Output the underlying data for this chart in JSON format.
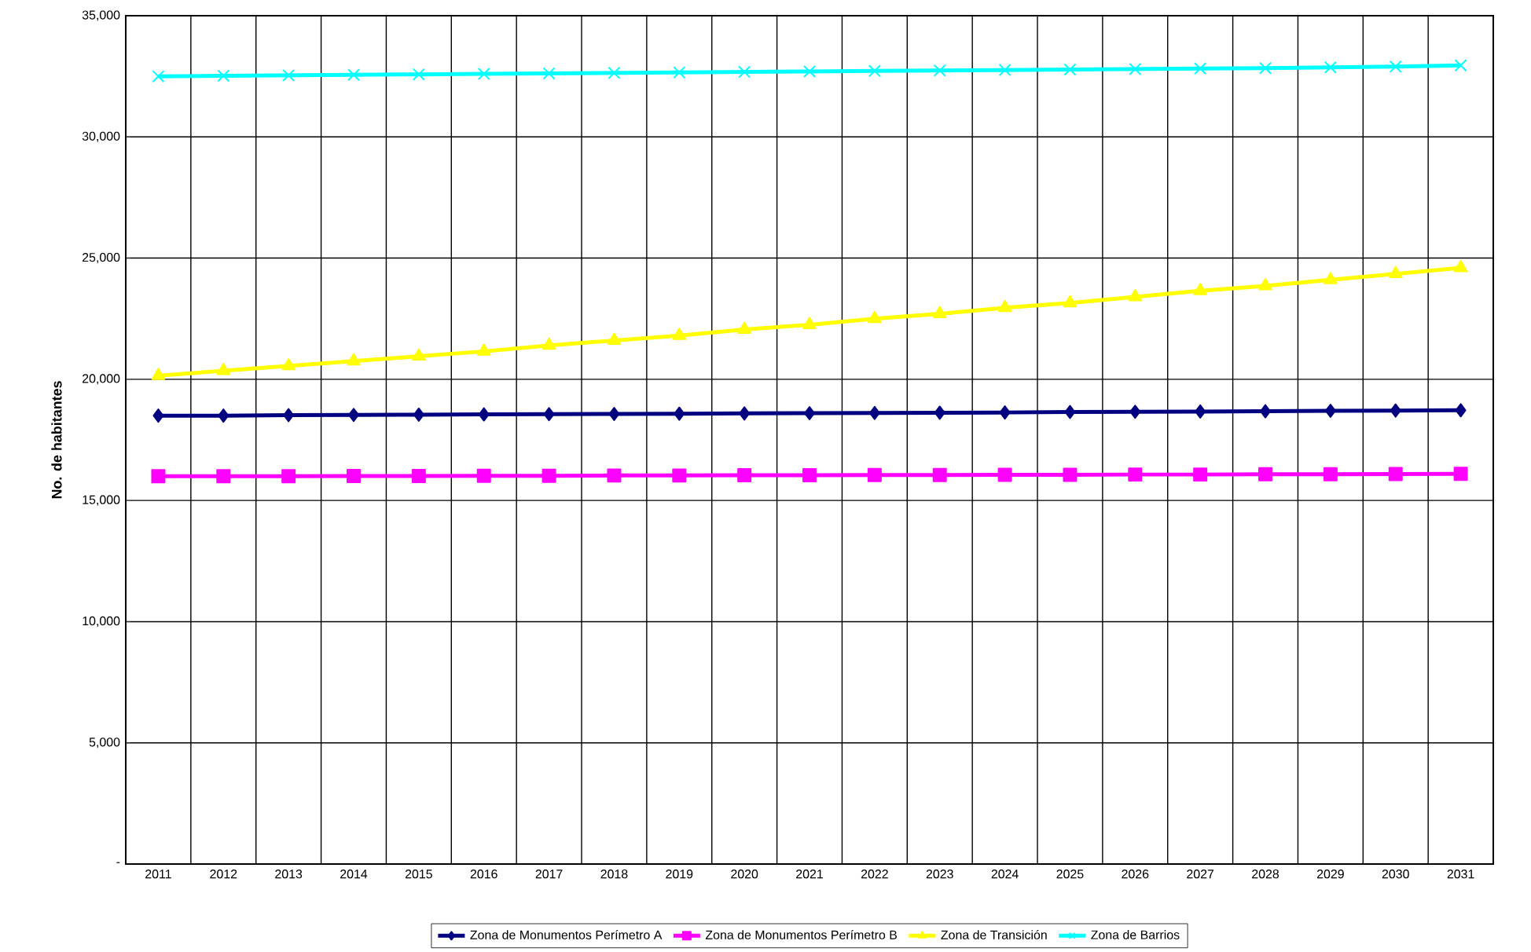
{
  "chart_data": {
    "type": "line",
    "ylabel": "No. de habitantes",
    "categories": [
      "2011",
      "2012",
      "2013",
      "2014",
      "2015",
      "2016",
      "2017",
      "2018",
      "2019",
      "2020",
      "2021",
      "2022",
      "2023",
      "2024",
      "2025",
      "2026",
      "2027",
      "2028",
      "2029",
      "2030",
      "2031"
    ],
    "series": [
      {
        "name": "Zona de Monumentos Perímetro A",
        "color": "#000080",
        "marker": "diamond",
        "values": [
          18500,
          18500,
          18520,
          18530,
          18540,
          18550,
          18560,
          18570,
          18580,
          18590,
          18600,
          18610,
          18620,
          18630,
          18650,
          18660,
          18670,
          18680,
          18700,
          18710,
          18720
        ]
      },
      {
        "name": "Zona de Monumentos Perímetro B",
        "color": "#ff00ff",
        "marker": "square",
        "values": [
          16000,
          16000,
          16000,
          16010,
          16010,
          16020,
          16020,
          16030,
          16030,
          16040,
          16040,
          16050,
          16050,
          16060,
          16060,
          16070,
          16070,
          16080,
          16080,
          16090,
          16100
        ]
      },
      {
        "name": "Zona de Transición",
        "color": "#ffff00",
        "marker": "triangle",
        "values": [
          20150,
          20350,
          20550,
          20750,
          20950,
          21150,
          21400,
          21600,
          21800,
          22050,
          22250,
          22500,
          22700,
          22950,
          23150,
          23400,
          23650,
          23850,
          24100,
          24350,
          24600
        ]
      },
      {
        "name": "Zona de Barrios",
        "color": "#00ffff",
        "marker": "cross",
        "values": [
          32500,
          32520,
          32540,
          32560,
          32580,
          32600,
          32620,
          32640,
          32660,
          32680,
          32700,
          32720,
          32740,
          32760,
          32780,
          32800,
          32820,
          32840,
          32870,
          32900,
          32950
        ]
      }
    ],
    "ylim": [
      0,
      35000
    ],
    "yticks": [
      {
        "value": 0,
        "label": "-"
      },
      {
        "value": 5000,
        "label": "5,000"
      },
      {
        "value": 10000,
        "label": "10,000"
      },
      {
        "value": 15000,
        "label": "15,000"
      },
      {
        "value": 20000,
        "label": "20,000"
      },
      {
        "value": 25000,
        "label": "25,000"
      },
      {
        "value": 30000,
        "label": "30,000"
      },
      {
        "value": 35000,
        "label": "35,000"
      }
    ],
    "grid": true,
    "legend": "bottom"
  }
}
